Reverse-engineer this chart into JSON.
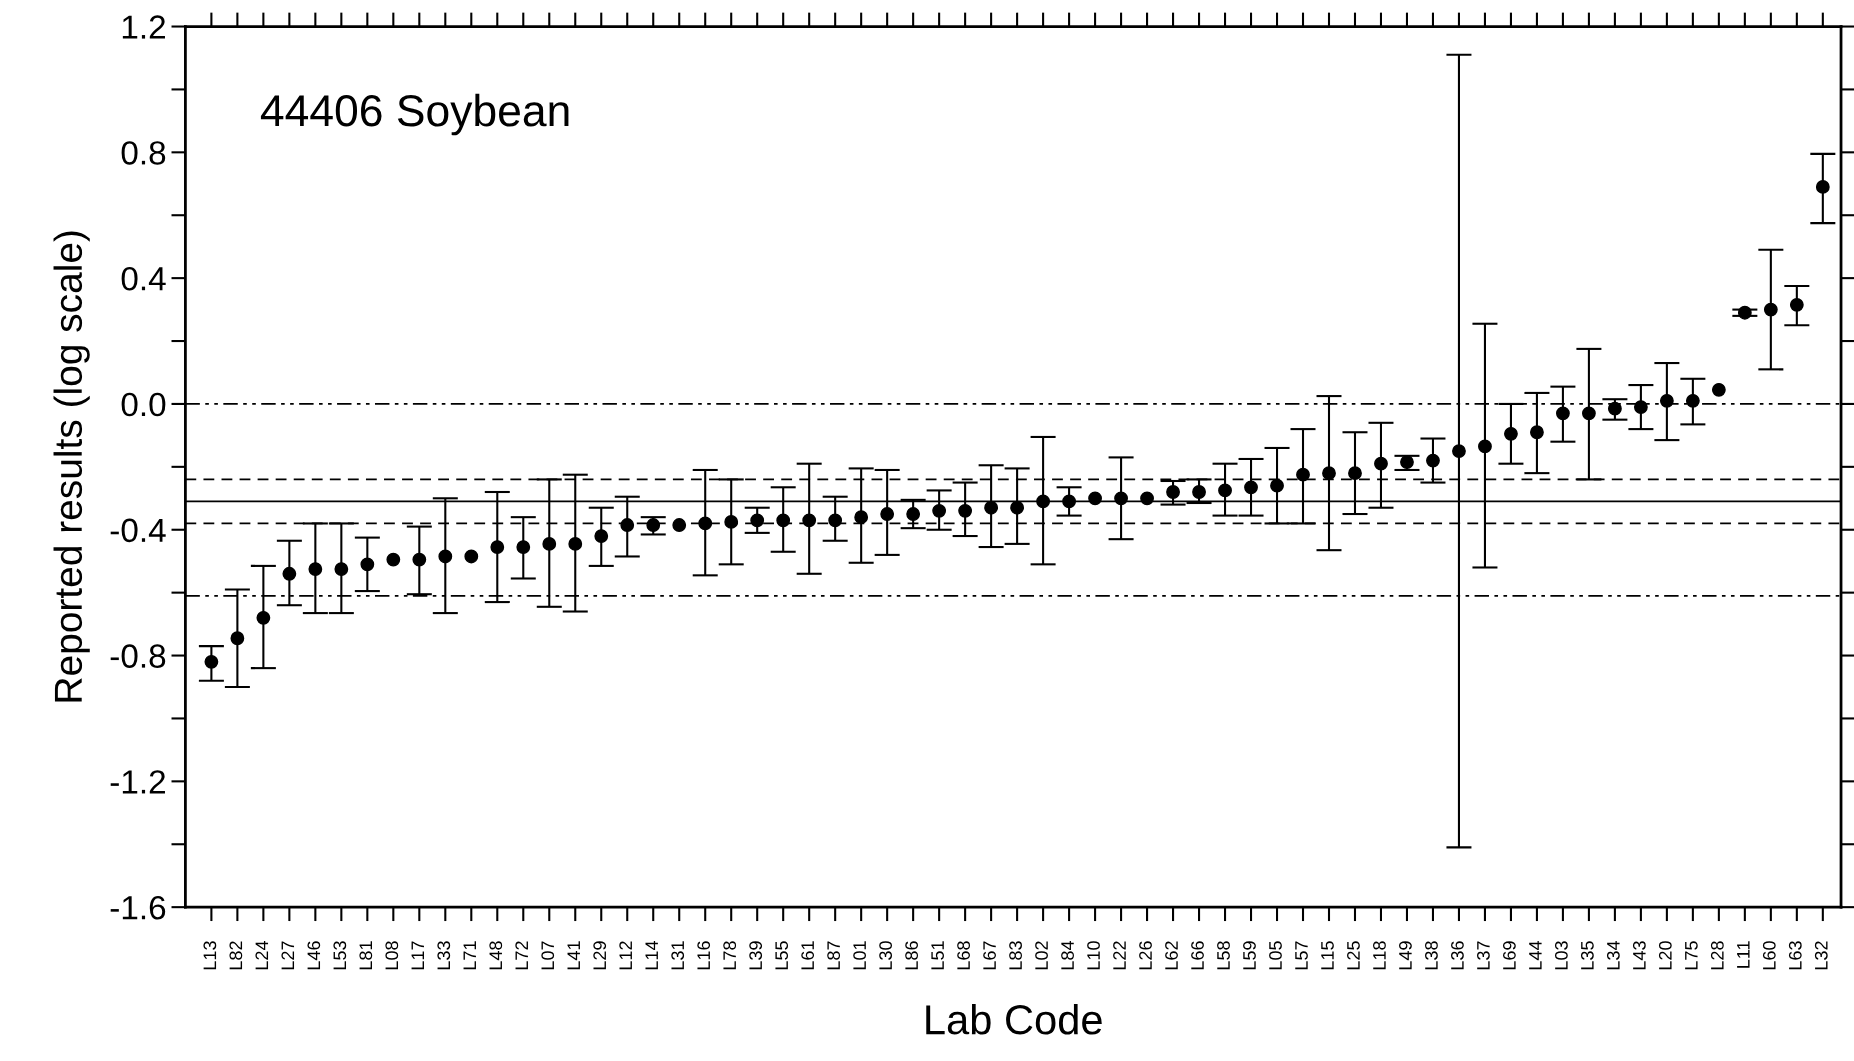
{
  "chart_data": {
    "type": "scatter",
    "xlabel": "Lab Code",
    "ylabel": "Reported results (log scale)",
    "annotations": [
      "44406 Soybean"
    ],
    "categories": [
      "L13",
      "L82",
      "L24",
      "L27",
      "L46",
      "L53",
      "L81",
      "L08",
      "L17",
      "L33",
      "L71",
      "L48",
      "L72",
      "L07",
      "L41",
      "L29",
      "L12",
      "L14",
      "L31",
      "L16",
      "L78",
      "L39",
      "L55",
      "L61",
      "L87",
      "L01",
      "L30",
      "L86",
      "L51",
      "L68",
      "L67",
      "L83",
      "L02",
      "L84",
      "L10",
      "L22",
      "L26",
      "L62",
      "L66",
      "L58",
      "L59",
      "L05",
      "L57",
      "L15",
      "L25",
      "L18",
      "L49",
      "L38",
      "L36",
      "L37",
      "L69",
      "L44",
      "L03",
      "L35",
      "L34",
      "L43",
      "L20",
      "L75",
      "L28",
      "L11",
      "L60",
      "L63",
      "L32"
    ],
    "series": [
      {
        "color": "#000000",
        "marker": "circle",
        "values": [
          -0.82,
          -0.745,
          -0.68,
          -0.54,
          -0.525,
          -0.525,
          -0.51,
          -0.495,
          -0.495,
          -0.485,
          -0.485,
          -0.455,
          -0.455,
          -0.445,
          -0.445,
          -0.42,
          -0.385,
          -0.385,
          -0.385,
          -0.38,
          -0.375,
          -0.37,
          -0.37,
          -0.37,
          -0.37,
          -0.36,
          -0.35,
          -0.35,
          -0.34,
          -0.34,
          -0.33,
          -0.33,
          -0.31,
          -0.31,
          -0.3,
          -0.3,
          -0.3,
          -0.28,
          -0.28,
          -0.275,
          -0.265,
          -0.26,
          -0.225,
          -0.22,
          -0.22,
          -0.19,
          -0.185,
          -0.18,
          -0.15,
          -0.135,
          -0.095,
          -0.09,
          -0.03,
          -0.03,
          -0.015,
          -0.01,
          0.01,
          0.01,
          0.045,
          0.29,
          0.3,
          0.315,
          0.69
        ],
        "errors": [
          [
            -0.88,
            -0.77
          ],
          [
            -0.9,
            -0.59
          ],
          [
            -0.84,
            -0.515
          ],
          [
            -0.64,
            -0.435
          ],
          [
            -0.665,
            -0.38
          ],
          [
            -0.665,
            -0.38
          ],
          [
            -0.595,
            -0.425
          ],
          null,
          [
            -0.605,
            -0.39
          ],
          [
            -0.665,
            -0.3
          ],
          null,
          [
            -0.63,
            -0.28
          ],
          [
            -0.555,
            -0.36
          ],
          [
            -0.645,
            -0.24
          ],
          [
            -0.66,
            -0.225
          ],
          [
            -0.515,
            -0.33
          ],
          [
            -0.485,
            -0.295
          ],
          [
            -0.415,
            -0.36
          ],
          null,
          [
            -0.545,
            -0.21
          ],
          [
            -0.51,
            -0.24
          ],
          [
            -0.41,
            -0.33
          ],
          [
            -0.47,
            -0.265
          ],
          [
            -0.54,
            -0.19
          ],
          [
            -0.435,
            -0.295
          ],
          [
            -0.505,
            -0.205
          ],
          [
            -0.48,
            -0.21
          ],
          [
            -0.395,
            -0.305
          ],
          [
            -0.4,
            -0.275
          ],
          [
            -0.42,
            -0.25
          ],
          [
            -0.455,
            -0.195
          ],
          [
            -0.445,
            -0.205
          ],
          [
            -0.51,
            -0.105
          ],
          [
            -0.355,
            -0.265
          ],
          null,
          [
            -0.43,
            -0.17
          ],
          null,
          [
            -0.32,
            -0.245
          ],
          [
            -0.315,
            -0.24
          ],
          [
            -0.355,
            -0.19
          ],
          [
            -0.355,
            -0.175
          ],
          [
            -0.38,
            -0.14
          ],
          [
            -0.38,
            -0.08
          ],
          [
            -0.465,
            0.025
          ],
          [
            -0.35,
            -0.09
          ],
          [
            -0.33,
            -0.06
          ],
          [
            -0.21,
            -0.165
          ],
          [
            -0.25,
            -0.11
          ],
          [
            -1.41,
            1.11
          ],
          [
            -0.52,
            0.255
          ],
          [
            -0.19,
            0.0
          ],
          [
            -0.22,
            0.035
          ],
          [
            -0.12,
            0.055
          ],
          [
            -0.24,
            0.175
          ],
          [
            -0.05,
            0.015
          ],
          [
            -0.08,
            0.06
          ],
          [
            -0.115,
            0.13
          ],
          [
            -0.065,
            0.08
          ],
          null,
          [
            0.28,
            0.3
          ],
          [
            0.11,
            0.49
          ],
          [
            0.25,
            0.375
          ],
          [
            0.575,
            0.795
          ]
        ]
      }
    ],
    "ylim": [
      -1.6,
      1.2
    ],
    "yticks": [
      {
        "value": -1.6,
        "label": "-1.6"
      },
      {
        "value": -1.4,
        "label": null
      },
      {
        "value": -1.2,
        "label": "-1.2"
      },
      {
        "value": -1.0,
        "label": null
      },
      {
        "value": -0.8,
        "label": "-0.8"
      },
      {
        "value": -0.6,
        "label": null
      },
      {
        "value": -0.4,
        "label": "-0.4"
      },
      {
        "value": -0.2,
        "label": null
      },
      {
        "value": 0.0,
        "label": "0.0"
      },
      {
        "value": 0.2,
        "label": null
      },
      {
        "value": 0.4,
        "label": "0.4"
      },
      {
        "value": 0.6,
        "label": null
      },
      {
        "value": 0.8,
        "label": "0.8"
      },
      {
        "value": 1.0,
        "label": null
      },
      {
        "value": 1.2,
        "label": "1.2"
      }
    ],
    "ref_lines": [
      {
        "axis": "y",
        "value": 0.0,
        "line_style": "dashdot",
        "color": "#000000"
      },
      {
        "axis": "y",
        "value": -0.24,
        "line_style": "dashed",
        "color": "#000000"
      },
      {
        "axis": "y",
        "value": -0.31,
        "line_style": "solid",
        "color": "#000000"
      },
      {
        "axis": "y",
        "value": -0.38,
        "line_style": "dashed",
        "color": "#000000"
      },
      {
        "axis": "y",
        "value": -0.61,
        "line_style": "dashdot",
        "color": "#000000"
      }
    ],
    "grid": false,
    "legend": false
  }
}
